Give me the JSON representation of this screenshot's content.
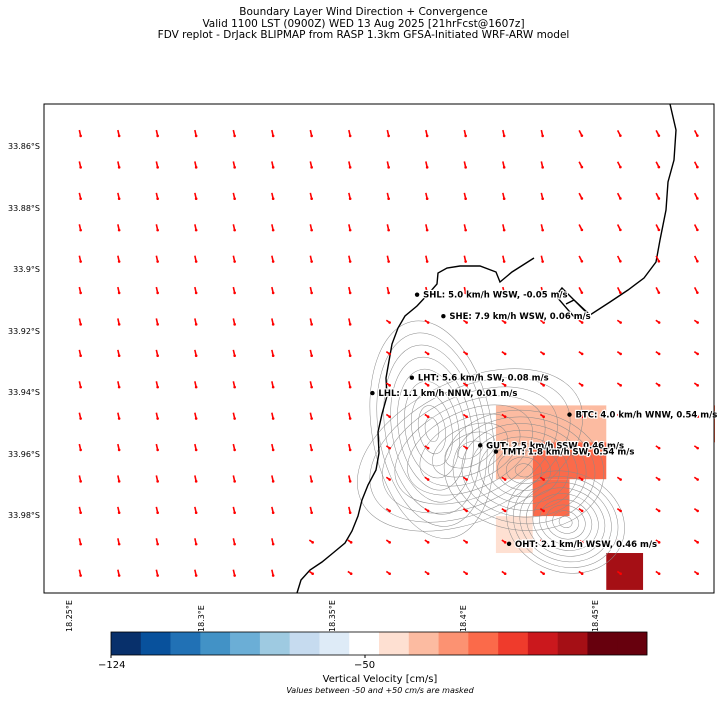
{
  "title": {
    "line1": "Boundary Layer Wind Direction + Convergence",
    "line2": "Valid 1100 LST (0900Z) WED 13 Aug 2025 [21hrFcst@1607z]",
    "line3": "FDV replot - DrJack BLIPMAP from RASP 1.3km GFSA-Initiated WRF-ARW model"
  },
  "axes": {
    "lat_ticks": [
      "33.86°S",
      "33.88°S",
      "33.9°S",
      "33.92°S",
      "33.94°S",
      "33.96°S",
      "33.98°S"
    ],
    "lon_ticks": [
      "18.25°E",
      "18.3°E",
      "18.35°E",
      "18.4°E",
      "18.45°E"
    ],
    "lat_range": [
      -34.005,
      -33.846
    ],
    "lon_range": [
      18.24,
      18.495
    ]
  },
  "stations": [
    {
      "code": "SHL",
      "text": "SHL: 5.0 km/h WSW, -0.05 m/s",
      "lon": 18.382,
      "lat": -33.908
    },
    {
      "code": "SHE",
      "text": "SHE: 7.9 km/h WSW, 0.06 m/s",
      "lon": 18.392,
      "lat": -33.915
    },
    {
      "code": "LHT",
      "text": "LHT: 5.6 km/h SW, 0.08 m/s",
      "lon": 18.38,
      "lat": -33.935
    },
    {
      "code": "LHL",
      "text": "LHL: 1.1 km/h NNW, 0.01 m/s",
      "lon": 18.365,
      "lat": -33.94
    },
    {
      "code": "BTC",
      "text": "BTC: 4.0 km/h WNW, 0.54 m/s",
      "lon": 18.44,
      "lat": -33.947
    },
    {
      "code": "GUT",
      "text": "GUT: 2.5 km/h SSW, 0.46 m/s",
      "lon": 18.406,
      "lat": -33.957
    },
    {
      "code": "TMT",
      "text": "TMT: 1.8 km/h SW, 0.54 m/s",
      "lon": 18.412,
      "lat": -33.959
    },
    {
      "code": "OHT",
      "text": "OHT: 2.1 km/h WSW, 0.46 m/s",
      "lon": 18.417,
      "lat": -33.989
    }
  ],
  "convergence_cells": [
    {
      "lon0": 18.412,
      "lon1": 18.454,
      "lat0": -33.944,
      "lat1": -33.956,
      "color": "#fcbba1"
    },
    {
      "lon0": 18.426,
      "lon1": 18.454,
      "lat0": -33.956,
      "lat1": -33.968,
      "color": "#fb6a4a"
    },
    {
      "lon0": 18.412,
      "lon1": 18.426,
      "lat0": -33.956,
      "lat1": -33.968,
      "color": "#fcbba1"
    },
    {
      "lon0": 18.426,
      "lon1": 18.44,
      "lat0": -33.968,
      "lat1": -33.98,
      "color": "#fb6a4a"
    },
    {
      "lon0": 18.412,
      "lon1": 18.426,
      "lat0": -33.98,
      "lat1": -33.992,
      "color": "#fee0d2"
    },
    {
      "lon0": 18.454,
      "lon1": 18.468,
      "lat0": -33.992,
      "lat1": -34.004,
      "color": "#a50f15"
    },
    {
      "lon0": 18.495,
      "lon1": 18.497,
      "lat0": -33.944,
      "lat1": -33.956,
      "color": "#fb6a4a"
    }
  ],
  "colorbar": {
    "colors": [
      "#08306b",
      "#08519c",
      "#2171b5",
      "#4292c6",
      "#6baed6",
      "#9ecae1",
      "#c6dbef",
      "#deebf7",
      "#ffffff",
      "#fee0d2",
      "#fcbba1",
      "#fc9272",
      "#fb6a4a",
      "#ef3b2c",
      "#cb181d",
      "#a50f15",
      "#67000d",
      "#67000d"
    ],
    "tick_left": "−124",
    "tick_mid": "−50",
    "title": "Vertical Velocity [cm/s]",
    "note": "Values between -50 and +50 cm/s are masked"
  },
  "colors": {
    "wind_arrow": "#ff0000",
    "coast": "#000000",
    "contour": "#8a8a8a"
  }
}
